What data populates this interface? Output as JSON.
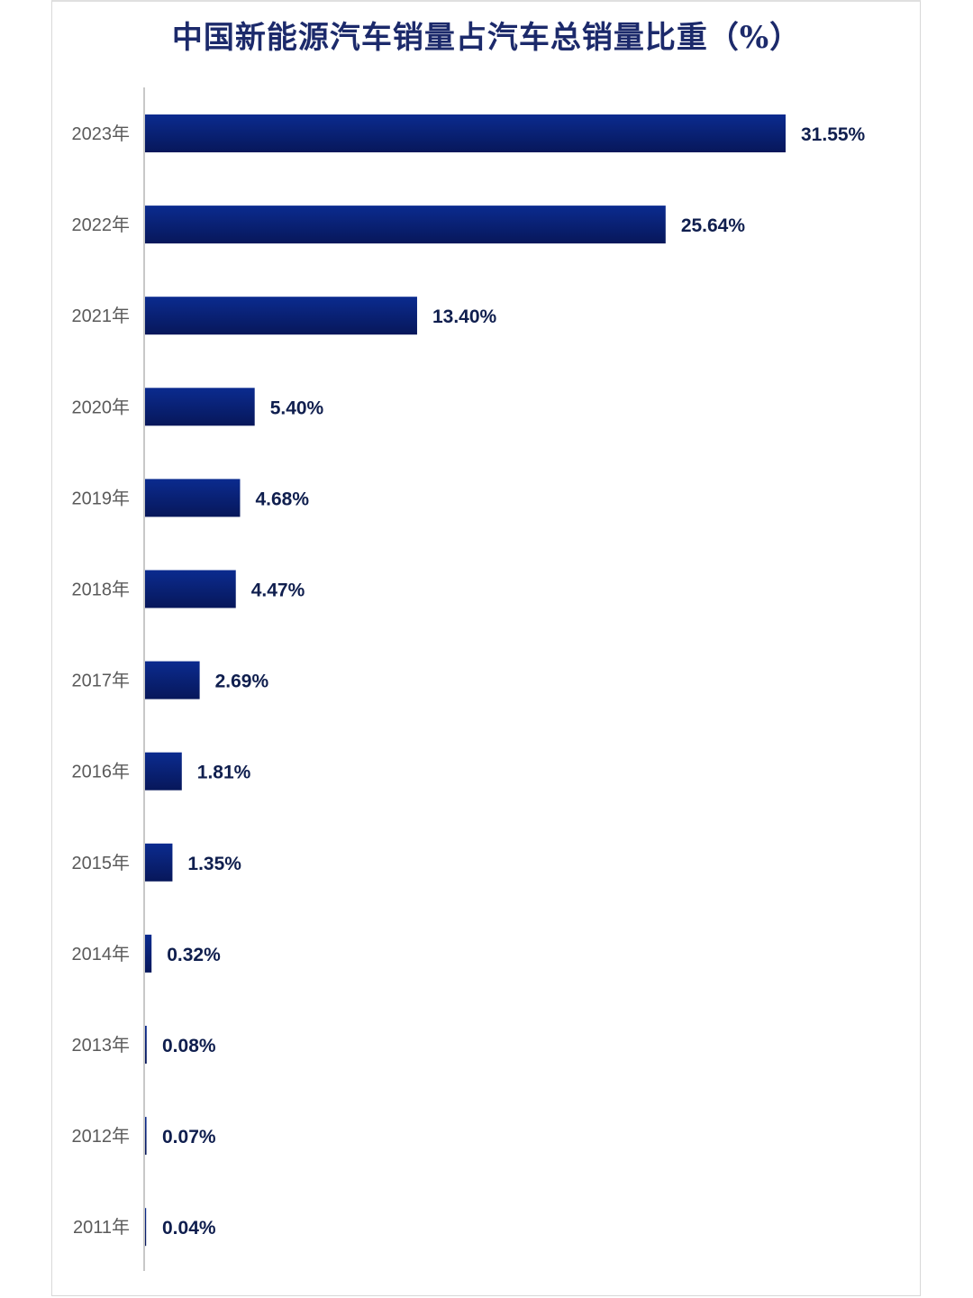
{
  "chart_data": {
    "type": "bar",
    "orientation": "horizontal",
    "title": "中国新能源汽车销量占汽车总销量比重（%）",
    "xlabel": "",
    "ylabel": "",
    "categories": [
      "2023年",
      "2022年",
      "2021年",
      "2020年",
      "2019年",
      "2018年",
      "2017年",
      "2016年",
      "2015年",
      "2014年",
      "2013年",
      "2012年",
      "2011年"
    ],
    "values": [
      31.55,
      25.64,
      13.4,
      5.4,
      4.68,
      4.47,
      2.69,
      1.81,
      1.35,
      0.32,
      0.08,
      0.07,
      0.04
    ],
    "data_labels": [
      "31.55%",
      "25.64%",
      "13.40%",
      "5.40%",
      "4.68%",
      "4.47%",
      "2.69%",
      "1.81%",
      "1.35%",
      "0.32%",
      "0.08%",
      "0.07%",
      "0.04%"
    ],
    "xlim": [
      0,
      31.55
    ],
    "grid": false,
    "legend": "none",
    "colors": {
      "bar_top": "#0b2b8f",
      "bar_bottom": "#07175a",
      "title": "#1c2a6b"
    }
  }
}
